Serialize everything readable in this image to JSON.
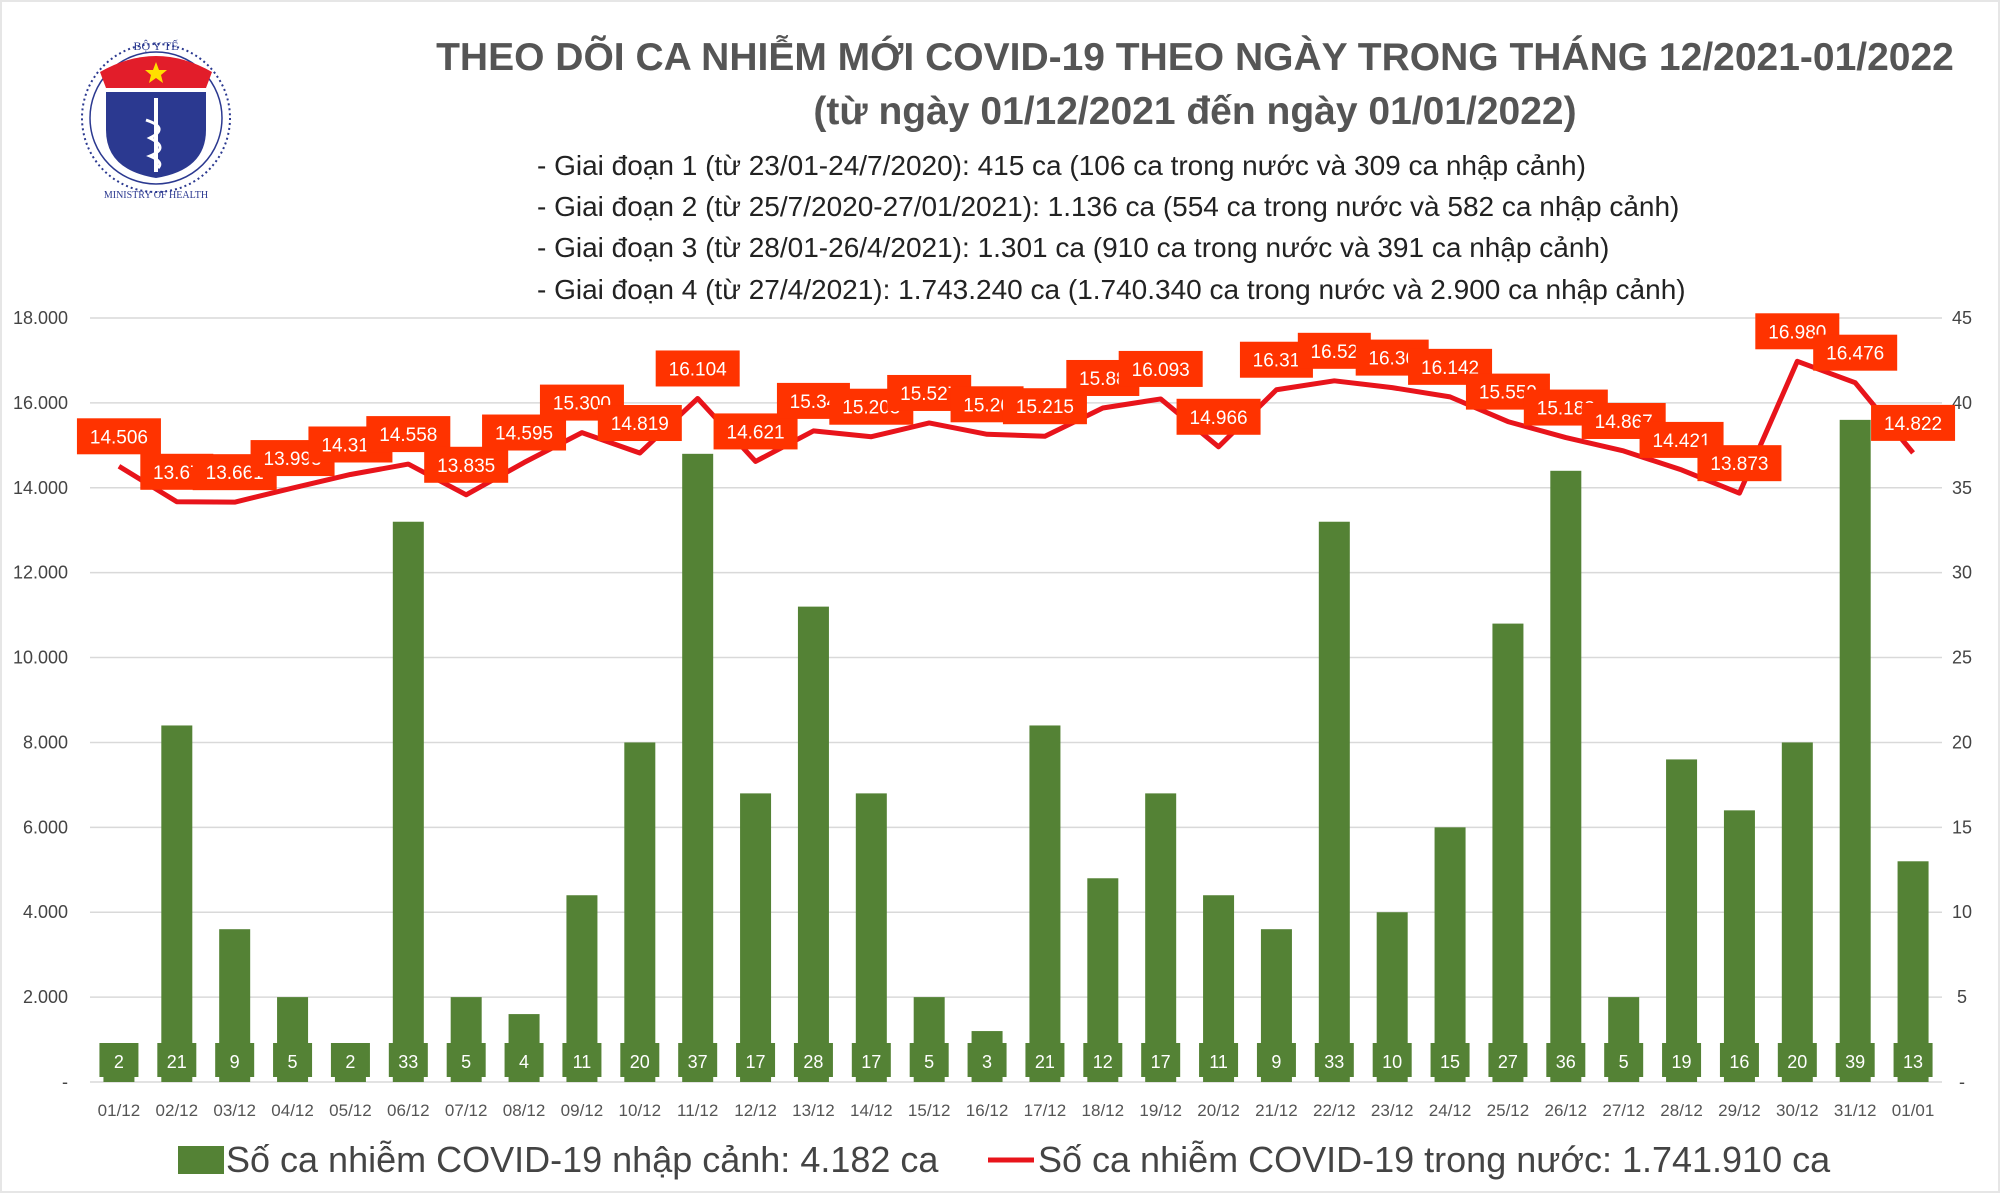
{
  "logo": {
    "top_text": "BỘ Y TẾ",
    "bottom_text": "MINISTRY OF HEALTH"
  },
  "header": {
    "title": "THEO DÕI CA NHIỄM MỚI COVID-19 THEO NGÀY TRONG THÁNG 12/2021-01/2022",
    "subtitle": "(từ ngày 01/12/2021 đến ngày 01/01/2022)",
    "phases": [
      "- Giai đoạn 1 (từ 23/01-24/7/2020): 415 ca (106 ca trong nước và 309 ca nhập cảnh)",
      "- Giai đoạn 2 (từ 25/7/2020-27/01/2021): 1.136 ca (554 ca trong nước và 582 ca nhập cảnh)",
      "- Giai đoạn 3 (từ 28/01-26/4/2021): 1.301 ca (910 ca trong nước và 391 ca nhập cảnh)",
      "- Giai đoạn 4 (từ 27/4/2021): 1.743.240 ca (1.740.340 ca trong nước và 2.900 ca nhập cảnh)"
    ]
  },
  "colors": {
    "bar": "#548235",
    "line": "#E8141B",
    "line_label_bg": "#FF3300",
    "grid": "#d9d9d9"
  },
  "chart_data": {
    "type": "bar+line",
    "categories": [
      "01/12",
      "02/12",
      "03/12",
      "04/12",
      "05/12",
      "06/12",
      "07/12",
      "08/12",
      "09/12",
      "10/12",
      "11/12",
      "12/12",
      "13/12",
      "14/12",
      "15/12",
      "16/12",
      "17/12",
      "18/12",
      "19/12",
      "20/12",
      "21/12",
      "22/12",
      "23/12",
      "24/12",
      "25/12",
      "26/12",
      "27/12",
      "28/12",
      "29/12",
      "30/12",
      "31/12",
      "01/01"
    ],
    "left_axis": {
      "ylim": [
        0,
        18000
      ],
      "ticks": [
        "-",
        "2.000",
        "4.000",
        "6.000",
        "8.000",
        "10.000",
        "12.000",
        "14.000",
        "16.000",
        "18.000"
      ]
    },
    "right_axis": {
      "ylim": [
        0,
        45
      ],
      "ticks": [
        "-",
        "5",
        "10",
        "15",
        "20",
        "25",
        "30",
        "35",
        "40",
        "45"
      ]
    },
    "grid": true,
    "legend_placement": "bottom",
    "series": [
      {
        "name": "Số ca nhiễm COVID-19 nhập cảnh: 4.182 ca",
        "type": "bar",
        "axis": "right",
        "values": [
          2,
          21,
          9,
          5,
          2,
          33,
          5,
          4,
          11,
          20,
          37,
          17,
          28,
          17,
          5,
          3,
          21,
          12,
          17,
          11,
          9,
          33,
          10,
          15,
          27,
          36,
          5,
          19,
          16,
          20,
          39,
          13
        ]
      },
      {
        "name": "Số ca nhiễm COVID-19 trong nước: 1.741.910 ca",
        "type": "line",
        "axis": "left",
        "values": [
          14506,
          13670,
          13661,
          13993,
          14313,
          14558,
          13835,
          14595,
          15300,
          14819,
          16104,
          14621,
          15340,
          15203,
          15527,
          15260,
          15215,
          15880,
          16093,
          14966,
          16310,
          16520,
          16360,
          16142,
          15559,
          15183,
          14867,
          14421,
          13873,
          16980,
          16476,
          14822
        ],
        "labels": [
          "14.506",
          "13.67",
          "13.661",
          "13.993",
          "14.313",
          "14.558",
          "13.835",
          "14.595",
          "15.300",
          "14.819",
          "16.104",
          "14.621",
          "15.34",
          "15.203",
          "15.527",
          "15.26",
          "15.215",
          "15.88",
          "16.093",
          "14.966",
          "16.31",
          "16.52",
          "16.36",
          "16.142",
          "15.559",
          "15.183",
          "14.867",
          "14.421",
          "13.873",
          "16.980",
          "16.476",
          "14.822"
        ]
      }
    ]
  }
}
